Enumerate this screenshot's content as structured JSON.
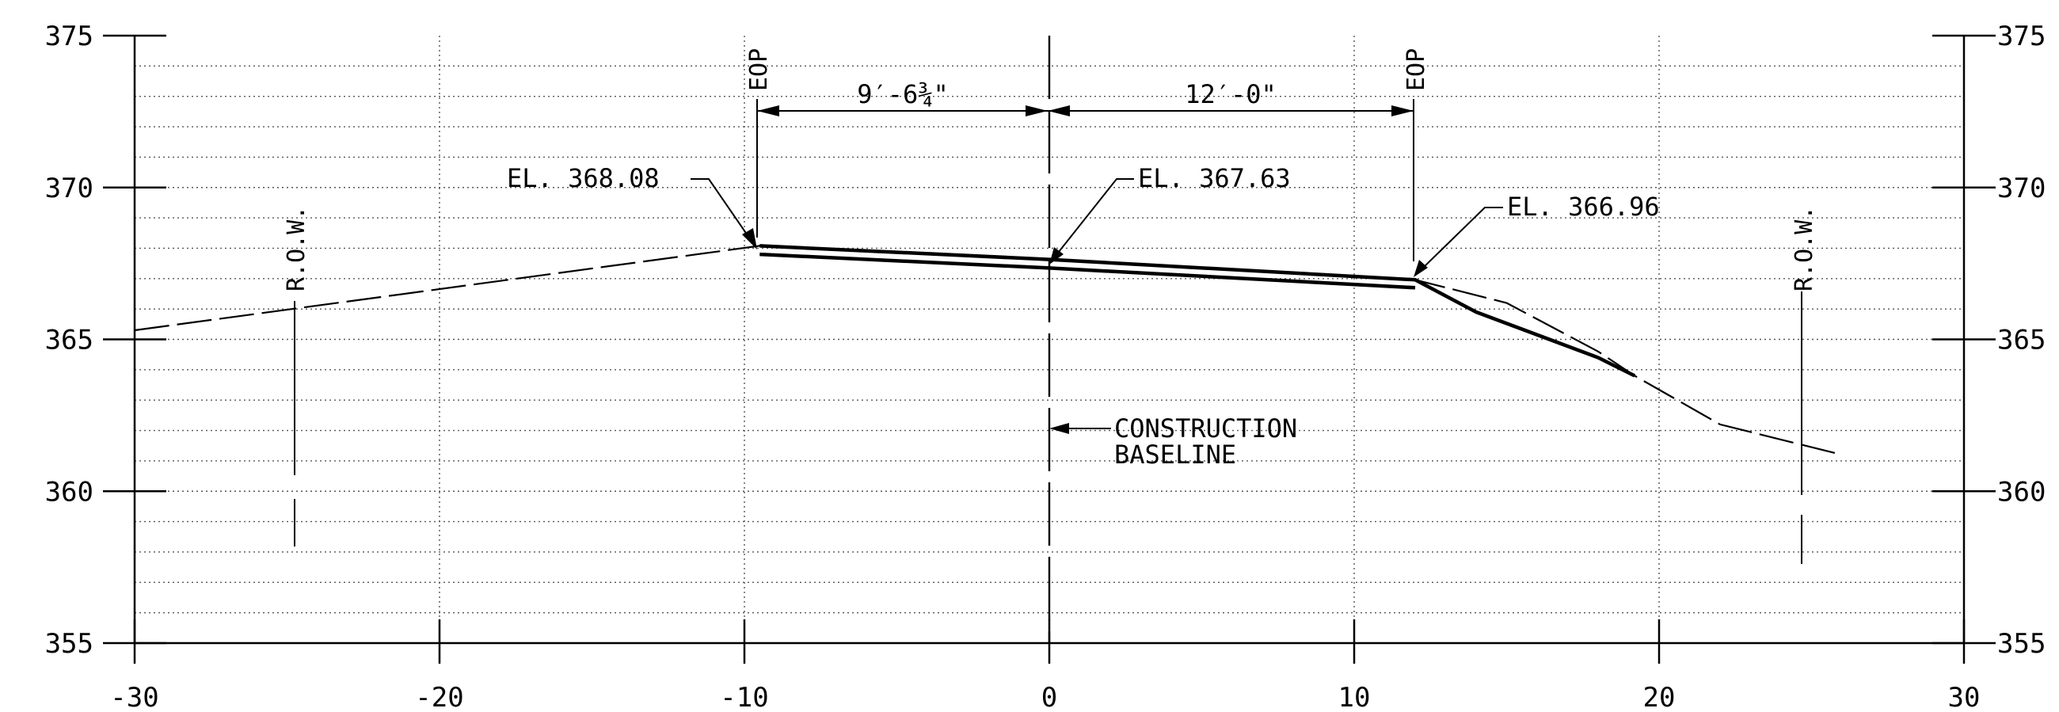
{
  "chart_data": {
    "type": "line",
    "title": "",
    "xlabel": "",
    "ylabel": "",
    "xlim": [
      -30,
      30
    ],
    "ylim": [
      355,
      375
    ],
    "x_ticks": [
      "-30",
      "-20",
      "-10",
      "0",
      "10",
      "20",
      "30"
    ],
    "y_ticks": [
      "355",
      "360",
      "365",
      "370",
      "375"
    ],
    "grid": "x every 10 dotted, y every 1 dotted",
    "series": [
      {
        "style": "dashed-thin",
        "x": [
          -30,
          -9.5,
          0,
          12,
          15,
          18,
          19.2,
          22,
          26
        ],
        "y": [
          365.3,
          368.08,
          367.63,
          366.96,
          366.2,
          364.6,
          363.8,
          362.2,
          361.2
        ]
      },
      {
        "style": "solid-thick",
        "x": [
          -9.5,
          0,
          12,
          14,
          18,
          19.2
        ],
        "y": [
          368.08,
          367.63,
          366.96,
          365.9,
          364.4,
          363.8
        ]
      },
      {
        "style": "solid-thick",
        "x": [
          -9.5,
          0,
          12
        ],
        "y": [
          367.8,
          367.35,
          366.7
        ]
      }
    ],
    "annotations": {
      "eop_left": "EOP",
      "eop_right": "EOP",
      "row_left": "R.O.W.",
      "row_right": "R.O.W.",
      "el_left": "EL. 368.08",
      "el_center": "EL. 367.63",
      "el_right": "EL. 366.96",
      "dim_left": "9′-6¾\"",
      "dim_right": "12′-0\"",
      "baseline_line1": "CONSTRUCTION",
      "baseline_line2": "BASELINE"
    }
  }
}
